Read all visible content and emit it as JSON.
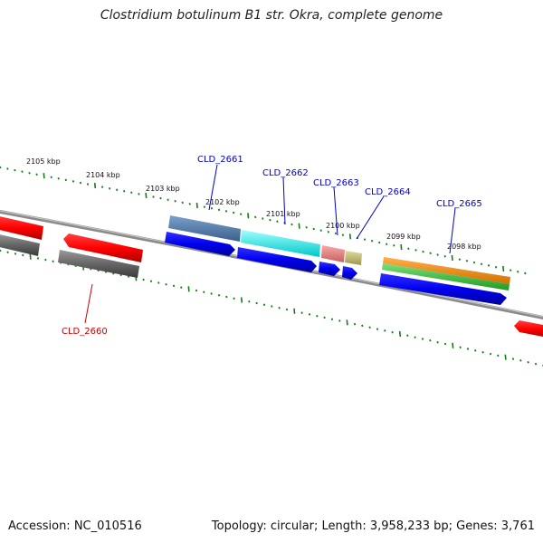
{
  "title": "Clostridium botulinum B1 str. Okra, complete genome",
  "footer": {
    "accession": "Accession: NC_010516",
    "summary": "Topology: circular; Length: 3,958,233 bp; Genes: 3,761"
  },
  "kbp_ticks": [
    "2105 kbp",
    "2104 kbp",
    "2103 kbp",
    "2102 kbp",
    "2101 kbp",
    "2100 kbp",
    "2099 kbp",
    "2098 kbp"
  ],
  "gene_labels": [
    {
      "text": "CLD_2660",
      "color": "#cc0000"
    },
    {
      "text": "CLD_2661",
      "color": "#0000cc"
    },
    {
      "text": "CLD_2662",
      "color": "#0000cc"
    },
    {
      "text": "CLD_2663",
      "color": "#0000cc"
    },
    {
      "text": "CLD_2664",
      "color": "#0000cc"
    },
    {
      "text": "CLD_2665",
      "color": "#0000cc"
    }
  ],
  "colors": {
    "backbone": "#808080",
    "tick": "#1a7a1a",
    "forward_gene": "#ff0000",
    "reverse_gene": "#0000ff",
    "grey_gene": "#666666",
    "steelblue": "#4f7fb0",
    "cyan": "#00ffff",
    "salmon": "#f08080",
    "khaki": "#bdb76b",
    "orange": "#ff8c00",
    "green": "#33cc33"
  }
}
